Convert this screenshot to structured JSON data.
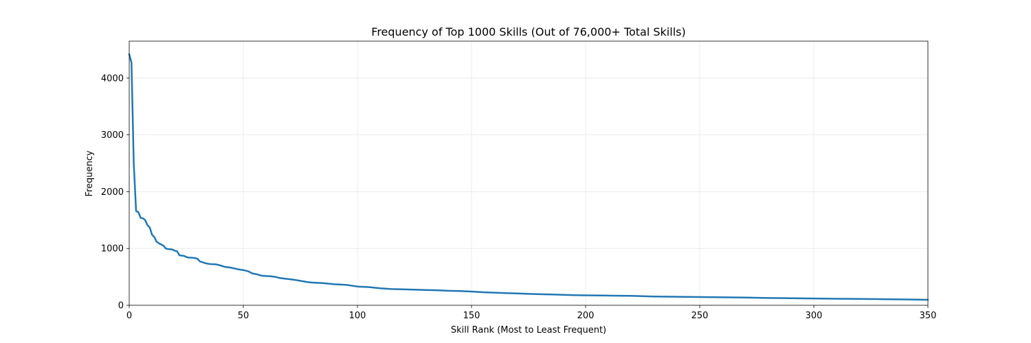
{
  "chart_data": {
    "type": "line",
    "title": "Frequency of Top 1000 Skills (Out of 76,000+ Total Skills)",
    "xlabel": "Skill Rank (Most to Least Frequent)",
    "ylabel": "Frequency",
    "xlim": [
      0,
      350
    ],
    "ylim": [
      0,
      4650
    ],
    "xticks": [
      0,
      50,
      100,
      150,
      200,
      250,
      300,
      350
    ],
    "yticks": [
      0,
      1000,
      2000,
      3000,
      4000
    ],
    "grid": true,
    "line_color": "#1f77b4",
    "series": [
      {
        "x": [
          0,
          1,
          2,
          3,
          4,
          5,
          6,
          7,
          8,
          9,
          10,
          11,
          12,
          13,
          14,
          15,
          16,
          17,
          18,
          19,
          20,
          21,
          22,
          23,
          24,
          25,
          26,
          27,
          28,
          29,
          30,
          31,
          32,
          33,
          34,
          35,
          36,
          38,
          40,
          42,
          44,
          46,
          48,
          50,
          52,
          54,
          56,
          58,
          60,
          62,
          64,
          66,
          68,
          70,
          72,
          75,
          78,
          80,
          85,
          90,
          95,
          100,
          105,
          110,
          115,
          120,
          125,
          130,
          135,
          140,
          145,
          150,
          155,
          160,
          165,
          170,
          175,
          180,
          185,
          190,
          195,
          200,
          210,
          220,
          230,
          240,
          250,
          260,
          270,
          280,
          290,
          300,
          310,
          320,
          330,
          340,
          350
        ],
        "y": [
          4420,
          4270,
          2500,
          1660,
          1640,
          1540,
          1530,
          1500,
          1410,
          1370,
          1240,
          1200,
          1120,
          1090,
          1070,
          1050,
          1000,
          990,
          985,
          980,
          960,
          950,
          880,
          875,
          870,
          850,
          840,
          838,
          835,
          830,
          815,
          770,
          760,
          745,
          735,
          728,
          725,
          720,
          700,
          675,
          665,
          650,
          630,
          620,
          600,
          560,
          545,
          520,
          515,
          510,
          500,
          480,
          470,
          460,
          450,
          430,
          410,
          400,
          390,
          370,
          360,
          330,
          320,
          300,
          285,
          280,
          275,
          268,
          265,
          255,
          250,
          242,
          230,
          222,
          215,
          208,
          200,
          195,
          190,
          185,
          178,
          175,
          170,
          165,
          155,
          150,
          145,
          140,
          135,
          128,
          125,
          120,
          115,
          112,
          108,
          103,
          97
        ]
      }
    ]
  }
}
